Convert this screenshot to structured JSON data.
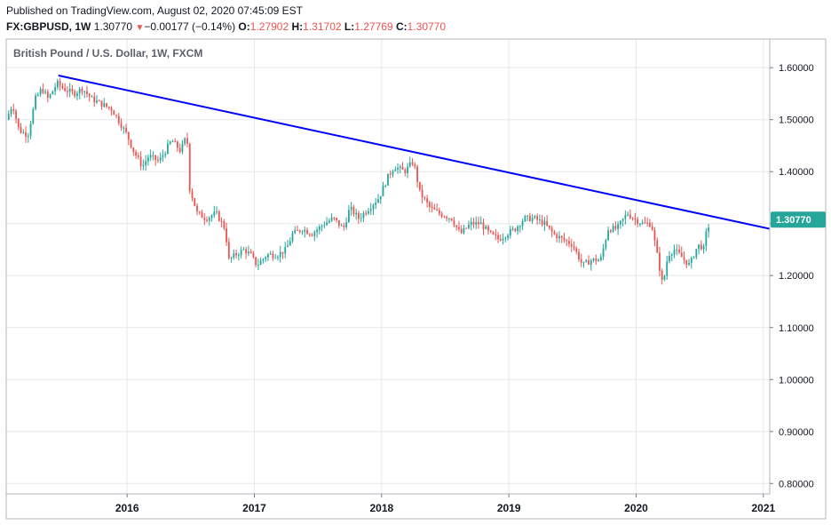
{
  "header": {
    "published": "Published on TradingView.com, August 02, 2020 07:45:09 EST",
    "symbol": "FX:GBPUSD, 1W",
    "last": "1.30770",
    "change_arrow": "▼",
    "change": "−0.00177 (−0.14%)",
    "o_label": "O:",
    "o_value": "1.27902",
    "h_label": "H:",
    "h_value": "1.31702",
    "l_label": "L:",
    "l_value": "1.27769",
    "c_label": "C:",
    "c_value": "1.30770"
  },
  "pane_title": "British Pound / U.S. Dollar, 1W, FXCM",
  "colors": {
    "up": "#26a69a",
    "down": "#ef5350",
    "trendline": "#0000ff",
    "price_label_bg": "#26a69a",
    "grid": "#e6e8ee"
  },
  "chart_data": {
    "type": "candlestick",
    "symbol": "GBPUSD",
    "interval": "1W",
    "y_ticks": [
      "1.60000",
      "1.50000",
      "1.40000",
      "1.30000",
      "1.20000",
      "1.10000",
      "1.00000",
      "0.90000",
      "0.80000"
    ],
    "ylim": [
      0.78,
      1.655
    ],
    "x_ticks": [
      "2016",
      "2017",
      "2018",
      "2019",
      "2020",
      "2021"
    ],
    "xlim": [
      2015.05,
      2021.05
    ],
    "grid": true,
    "current_price_label": "1.30770",
    "trendline": {
      "start": [
        2015.46,
        1.585
      ],
      "end": [
        2021.05,
        1.29
      ]
    },
    "close_path_points": [
      [
        2015.05,
        1.5
      ],
      [
        2015.1,
        1.53
      ],
      [
        2015.15,
        1.48
      ],
      [
        2015.22,
        1.47
      ],
      [
        2015.28,
        1.54
      ],
      [
        2015.33,
        1.56
      ],
      [
        2015.38,
        1.54
      ],
      [
        2015.45,
        1.57
      ],
      [
        2015.5,
        1.56
      ],
      [
        2015.58,
        1.55
      ],
      [
        2015.65,
        1.56
      ],
      [
        2015.72,
        1.54
      ],
      [
        2015.8,
        1.53
      ],
      [
        2015.88,
        1.52
      ],
      [
        2015.93,
        1.5
      ],
      [
        2016.0,
        1.47
      ],
      [
        2016.05,
        1.44
      ],
      [
        2016.12,
        1.41
      ],
      [
        2016.17,
        1.43
      ],
      [
        2016.25,
        1.42
      ],
      [
        2016.3,
        1.44
      ],
      [
        2016.35,
        1.46
      ],
      [
        2016.42,
        1.44
      ],
      [
        2016.47,
        1.47
      ],
      [
        2016.49,
        1.37
      ],
      [
        2016.55,
        1.32
      ],
      [
        2016.62,
        1.31
      ],
      [
        2016.7,
        1.32
      ],
      [
        2016.77,
        1.29
      ],
      [
        2016.8,
        1.23
      ],
      [
        2016.85,
        1.24
      ],
      [
        2016.92,
        1.25
      ],
      [
        2016.97,
        1.24
      ],
      [
        2017.02,
        1.22
      ],
      [
        2017.1,
        1.24
      ],
      [
        2017.18,
        1.24
      ],
      [
        2017.25,
        1.25
      ],
      [
        2017.3,
        1.28
      ],
      [
        2017.38,
        1.29
      ],
      [
        2017.45,
        1.28
      ],
      [
        2017.55,
        1.3
      ],
      [
        2017.62,
        1.31
      ],
      [
        2017.7,
        1.29
      ],
      [
        2017.75,
        1.33
      ],
      [
        2017.82,
        1.31
      ],
      [
        2017.9,
        1.33
      ],
      [
        2017.98,
        1.35
      ],
      [
        2018.05,
        1.39
      ],
      [
        2018.1,
        1.41
      ],
      [
        2018.18,
        1.4
      ],
      [
        2018.25,
        1.42
      ],
      [
        2018.3,
        1.36
      ],
      [
        2018.38,
        1.33
      ],
      [
        2018.45,
        1.32
      ],
      [
        2018.55,
        1.31
      ],
      [
        2018.62,
        1.28
      ],
      [
        2018.7,
        1.3
      ],
      [
        2018.78,
        1.3
      ],
      [
        2018.85,
        1.28
      ],
      [
        2018.92,
        1.27
      ],
      [
        2018.98,
        1.28
      ],
      [
        2019.05,
        1.29
      ],
      [
        2019.12,
        1.31
      ],
      [
        2019.2,
        1.31
      ],
      [
        2019.28,
        1.3
      ],
      [
        2019.35,
        1.28
      ],
      [
        2019.42,
        1.27
      ],
      [
        2019.5,
        1.26
      ],
      [
        2019.58,
        1.22
      ],
      [
        2019.65,
        1.23
      ],
      [
        2019.72,
        1.23
      ],
      [
        2019.78,
        1.29
      ],
      [
        2019.85,
        1.29
      ],
      [
        2019.93,
        1.32
      ],
      [
        2019.98,
        1.31
      ],
      [
        2020.05,
        1.3
      ],
      [
        2020.12,
        1.3
      ],
      [
        2020.18,
        1.22
      ],
      [
        2020.21,
        1.18
      ],
      [
        2020.25,
        1.24
      ],
      [
        2020.3,
        1.25
      ],
      [
        2020.38,
        1.23
      ],
      [
        2020.42,
        1.22
      ],
      [
        2020.47,
        1.25
      ],
      [
        2020.5,
        1.26
      ],
      [
        2020.53,
        1.25
      ],
      [
        2020.55,
        1.28
      ],
      [
        2020.585,
        1.3077
      ]
    ]
  }
}
